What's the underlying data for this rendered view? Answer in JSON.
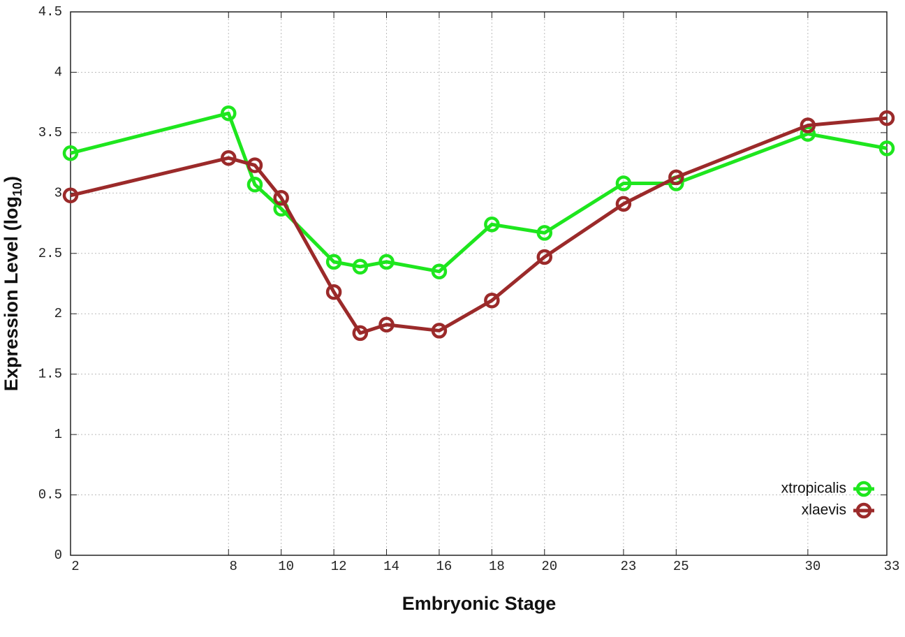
{
  "chart_data": {
    "type": "line",
    "xlabel": "Embryonic Stage",
    "ylabel": {
      "text": "Expression Level (log",
      "subscript": "10",
      "suffix": ")"
    },
    "x": [
      2,
      8,
      9,
      10,
      12,
      13,
      14,
      16,
      18,
      20,
      23,
      25,
      30,
      33
    ],
    "series": [
      {
        "name": "xtropicalis",
        "color": "#1ee61e",
        "values": [
          3.33,
          3.66,
          3.07,
          2.87,
          2.43,
          2.39,
          2.43,
          2.35,
          2.74,
          2.67,
          3.08,
          3.08,
          3.49,
          3.37
        ]
      },
      {
        "name": "xlaevis",
        "color": "#9b2a2a",
        "values": [
          2.98,
          3.29,
          3.23,
          2.96,
          2.18,
          1.84,
          1.91,
          1.86,
          2.11,
          2.47,
          2.91,
          3.13,
          3.56,
          3.62
        ]
      }
    ],
    "xlim": [
      2,
      33
    ],
    "xticks": [
      2,
      8,
      10,
      12,
      14,
      16,
      18,
      20,
      23,
      25,
      30,
      33
    ],
    "ylim": [
      0,
      4.5
    ],
    "yticks": [
      0,
      0.5,
      1,
      1.5,
      2,
      2.5,
      3,
      3.5,
      4,
      4.5
    ],
    "grid": true,
    "legend": "lower right"
  }
}
